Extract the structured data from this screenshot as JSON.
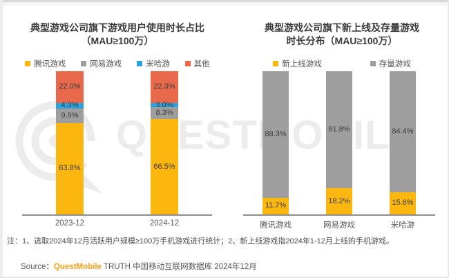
{
  "watermark": {
    "text": "QUESTMOBILE"
  },
  "chart_data": [
    {
      "type": "bar",
      "stacked": true,
      "title": "典型游戏公司旗下游戏用户使用时长占比",
      "subtitle": "（MAU≥100万）",
      "categories": [
        "2023-12",
        "2024-12"
      ],
      "series": [
        {
          "name": "腾讯游戏",
          "color": "#FBB70F",
          "values": [
            63.8,
            66.5
          ]
        },
        {
          "name": "网易游戏",
          "color": "#9E9E9E",
          "values": [
            9.9,
            8.3
          ]
        },
        {
          "name": "米哈游",
          "color": "#2BA3DE",
          "values": [
            4.3,
            3.0
          ]
        },
        {
          "name": "其他",
          "color": "#E8694C",
          "values": [
            22.0,
            22.3
          ]
        }
      ],
      "value_suffix": "%",
      "ylim": [
        0,
        100
      ],
      "legend_position": "top",
      "grid": false
    },
    {
      "type": "bar",
      "stacked": true,
      "title": "典型游戏公司旗下新上线及存量游戏",
      "subtitle": "时长分布（MAU≥100万）",
      "categories": [
        "腾讯游戏",
        "网易游戏",
        "米哈游"
      ],
      "series": [
        {
          "name": "新上线游戏",
          "color": "#FBB70F",
          "values": [
            11.7,
            18.2,
            15.6
          ]
        },
        {
          "name": "存量游戏",
          "color": "#9E9E9E",
          "values": [
            88.3,
            81.8,
            84.4
          ]
        }
      ],
      "value_suffix": "%",
      "ylim": [
        0,
        100
      ],
      "legend_position": "top",
      "grid": false
    }
  ],
  "footer": {
    "note": "注：1、选取2024年12月活跃用户规模≥100万手机游戏进行统计；2、新上线游戏指2024年1-12月上线的手机游戏。",
    "source_label": "Source：",
    "source_brand": "QuestMobile",
    "source_rest": " TRUTH 中国移动互联网数据库 2024年12月",
    "brand_color": "#F7A11A"
  }
}
